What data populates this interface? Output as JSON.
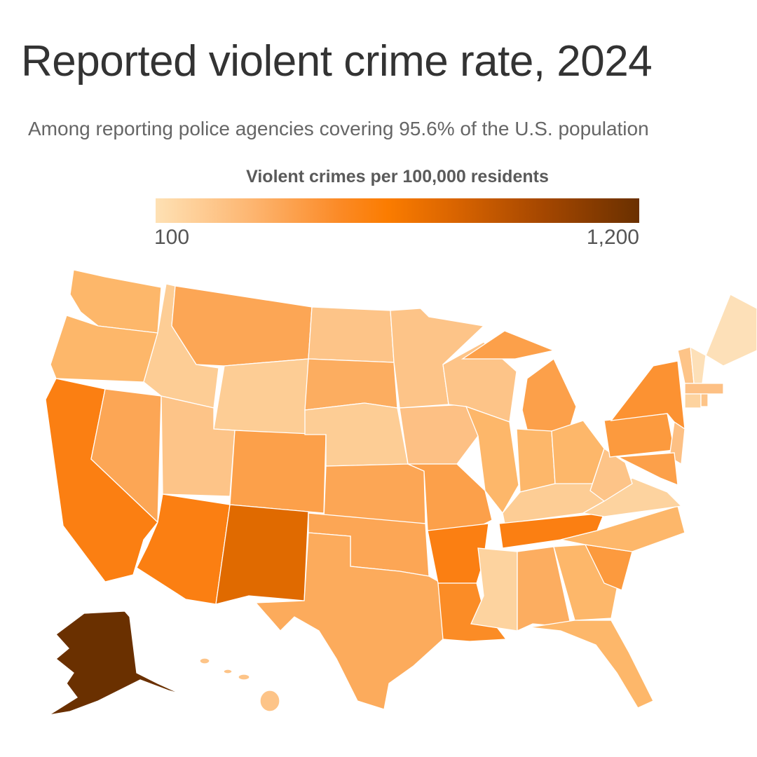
{
  "title": "Reported violent crime rate, 2024",
  "subtitle": "Among reporting police agencies covering 95.6% of the U.S. population",
  "legend": {
    "title": "Violent crimes per 100,000 residents",
    "min_label": "100",
    "max_label": "1,200",
    "min": 100,
    "max": 1200,
    "colors": [
      "#fee1b4",
      "#fb7c00",
      "#6a3000"
    ]
  },
  "state_fills": {
    "WA": "#fdb76a",
    "OR": "#fdb76a",
    "CA": "#fb7f12",
    "NV": "#fca655",
    "ID": "#fdcd95",
    "MT": "#fca655",
    "WY": "#fdcd95",
    "UT": "#fdc488",
    "CO": "#fca04a",
    "AZ": "#fb7f12",
    "NM": "#e06a00",
    "ND": "#fdc488",
    "SD": "#fcad60",
    "NE": "#fdcd95",
    "KS": "#fca655",
    "OK": "#fca655",
    "TX": "#fcab5c",
    "MN": "#fdc488",
    "IA": "#fdc084",
    "MO": "#fca04a",
    "AR": "#fb7f12",
    "LA": "#fb8c26",
    "WI": "#fdc488",
    "IL": "#fdb76a",
    "MI": "#fca04a",
    "IN": "#fdb76a",
    "OH": "#fdb76a",
    "KY": "#fdcd95",
    "TN": "#fb7f12",
    "MS": "#fdd39f",
    "AL": "#fcad60",
    "GA": "#fdb76a",
    "FL": "#fdb76a",
    "SC": "#fc9a3e",
    "NC": "#fdb76a",
    "VA": "#fdd39f",
    "WV": "#fdc488",
    "PA": "#fc9a3e",
    "NY": "#fc9232",
    "NJ": "#fdc084",
    "MD": "#fca04a",
    "VT": "#fdc488",
    "NH": "#fde0b8",
    "ME": "#fde0b8",
    "MA": "#fdc084",
    "CT": "#fdd39f",
    "RI": "#fdc488",
    "AK": "#6a3000",
    "HI": "#fdc488"
  }
}
